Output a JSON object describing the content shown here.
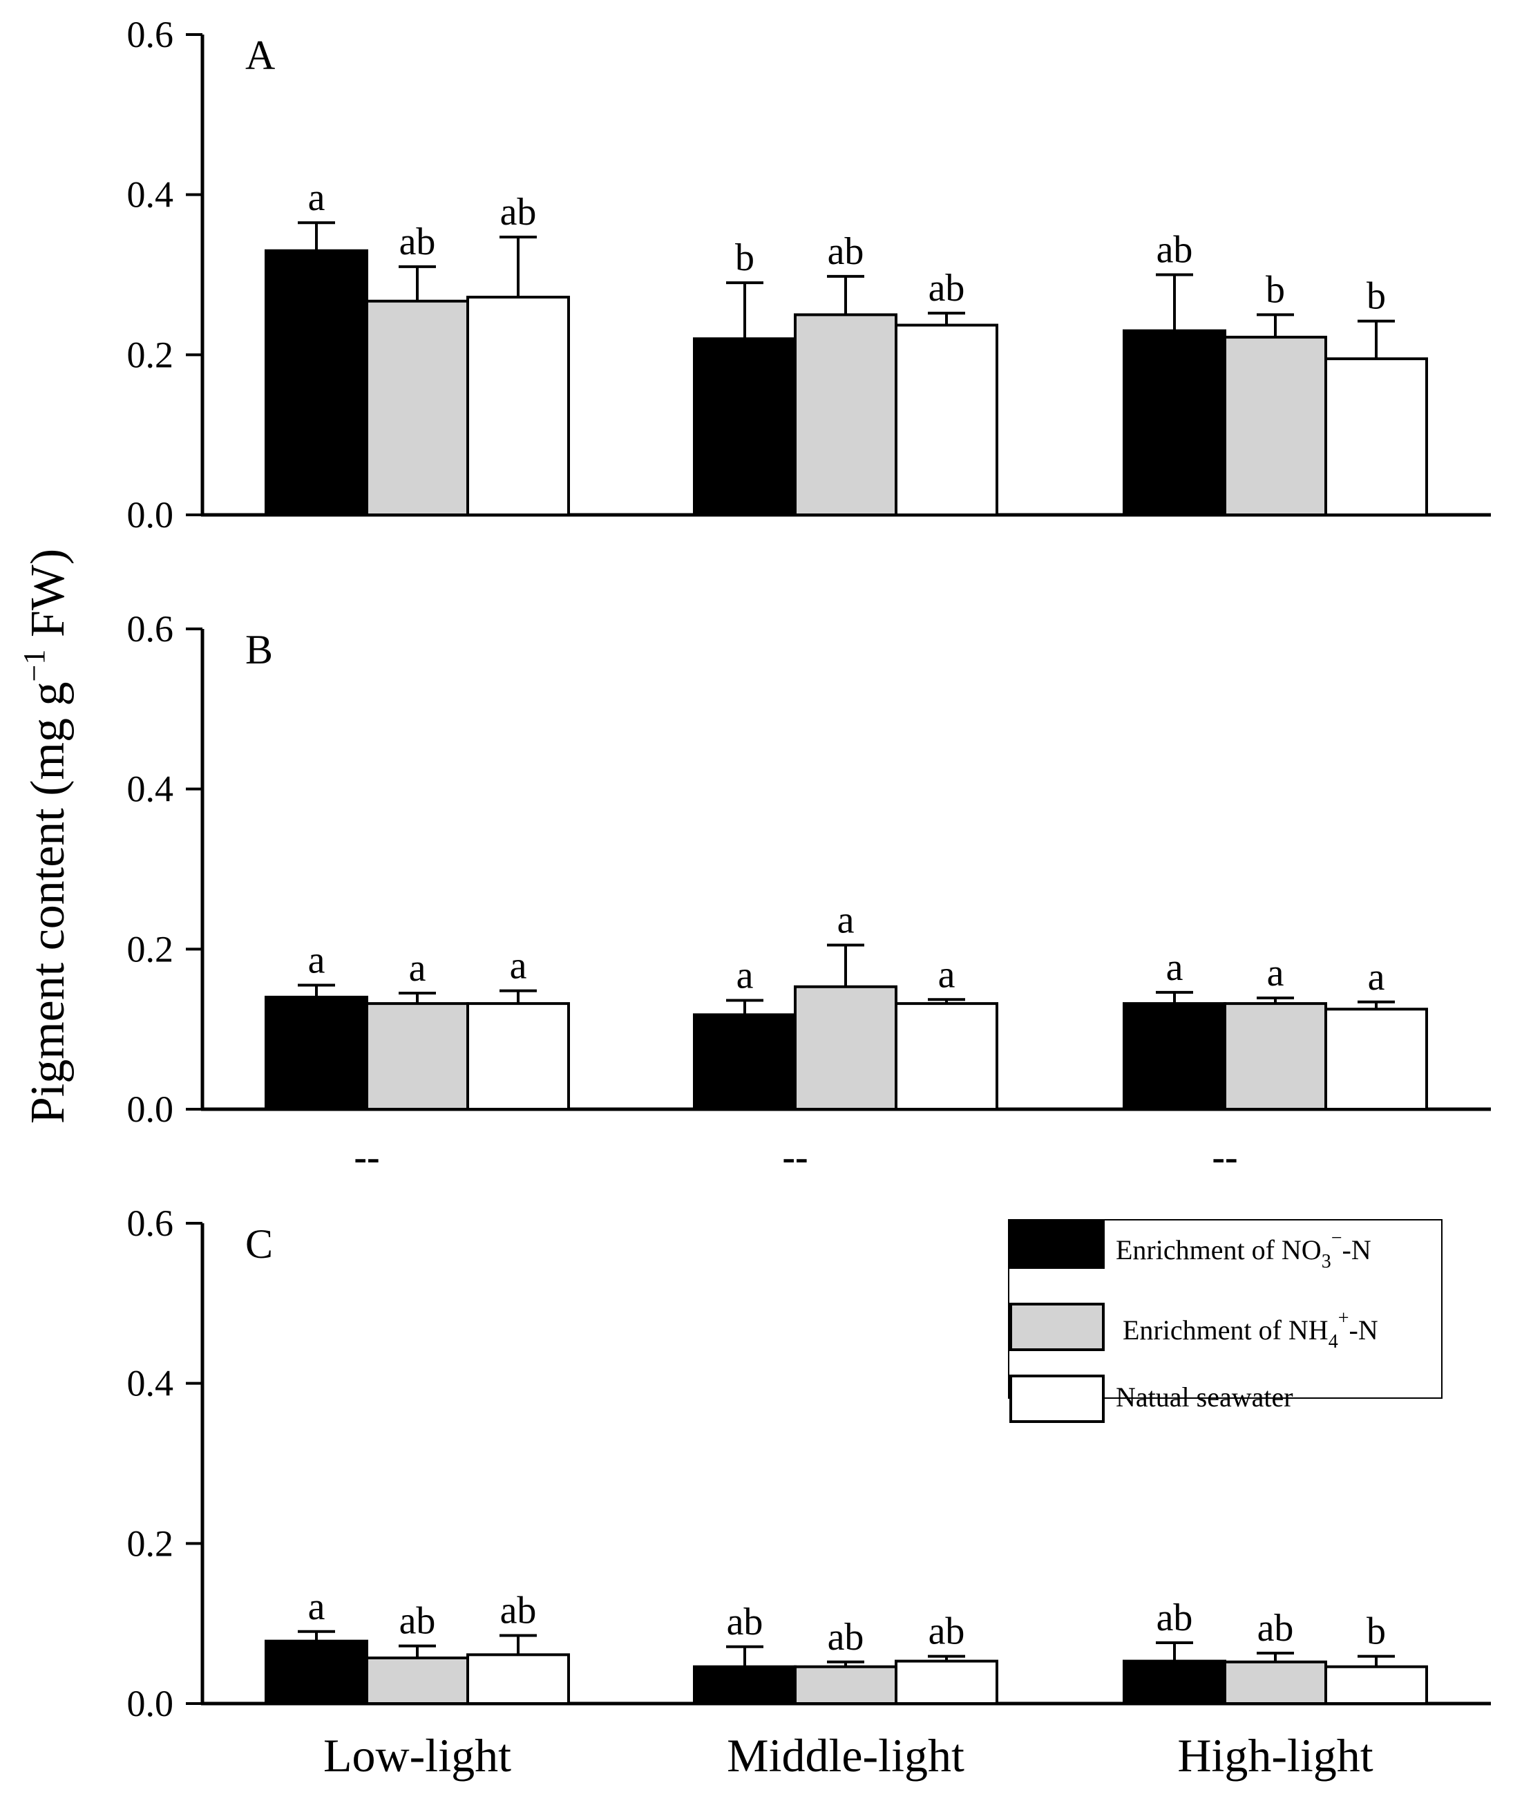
{
  "chart_data": {
    "type": "bar",
    "ylabel": "Pigment content (mg g⁻¹ FW)",
    "ylabel_parts": {
      "main": "Pigment content (mg g",
      "sup": "−1",
      "tail": " FW)"
    },
    "categories": [
      "Low-light",
      "Middle-light",
      "High-light"
    ],
    "ylim": [
      0,
      0.6
    ],
    "yticks": [
      "0.0",
      "0.2",
      "0.4",
      "0.6"
    ],
    "ytick_values": [
      0.0,
      0.2,
      0.4,
      0.6
    ],
    "legend": {
      "placement": "top-right of panel C",
      "entries": [
        {
          "name": "Enrichment of NO3−-N",
          "color": "#000000",
          "parts": {
            "pre": "Enrichment of NO",
            "sub": "3",
            "sup": "−",
            "post": "-N"
          }
        },
        {
          "name": "Enrichment of NH4+-N",
          "color": "#d3d3d3",
          "parts": {
            "pre": "Enrichment of NH",
            "sub": "4",
            "sup": "+",
            "post": "-N"
          }
        },
        {
          "name": "Natual seawater",
          "color": "#ffffff",
          "parts": {
            "pre": "Natual seawater",
            "sub": "",
            "sup": "",
            "post": ""
          }
        }
      ]
    },
    "panels": [
      {
        "label": "A",
        "series": [
          {
            "name": "Enrichment of NO3−-N",
            "color": "#000000",
            "values": [
              0.33,
              0.22,
              0.23
            ],
            "errors": [
              0.035,
              0.07,
              0.07
            ],
            "letters": [
              "a",
              "b",
              "ab"
            ]
          },
          {
            "name": "Enrichment of NH4+-N",
            "color": "#d3d3d3",
            "values": [
              0.267,
              0.25,
              0.222
            ],
            "errors": [
              0.043,
              0.048,
              0.028
            ],
            "letters": [
              "ab",
              "ab",
              "b"
            ]
          },
          {
            "name": "Natual seawater",
            "color": "#ffffff",
            "values": [
              0.272,
              0.237,
              0.195
            ],
            "errors": [
              0.075,
              0.015,
              0.047
            ],
            "letters": [
              "ab",
              "ab",
              "b"
            ]
          }
        ],
        "below_axis_marks": []
      },
      {
        "label": "B",
        "series": [
          {
            "name": "Enrichment of NO3−-N",
            "color": "#000000",
            "values": [
              0.14,
              0.118,
              0.132
            ],
            "errors": [
              0.015,
              0.018,
              0.014
            ],
            "letters": [
              "a",
              "a",
              "a"
            ]
          },
          {
            "name": "Enrichment of NH4+-N",
            "color": "#d3d3d3",
            "values": [
              0.132,
              0.153,
              0.132
            ],
            "errors": [
              0.013,
              0.052,
              0.007
            ],
            "letters": [
              "a",
              "a",
              "a"
            ]
          },
          {
            "name": "Natual seawater",
            "color": "#ffffff",
            "values": [
              0.132,
              0.132,
              0.125
            ],
            "errors": [
              0.016,
              0.005,
              0.009
            ],
            "letters": [
              "a",
              "a",
              "a"
            ]
          }
        ],
        "below_axis_marks": [
          "--",
          "--",
          "--"
        ]
      },
      {
        "label": "C",
        "series": [
          {
            "name": "Enrichment of NO3−-N",
            "color": "#000000",
            "values": [
              0.078,
              0.046,
              0.053
            ],
            "errors": [
              0.012,
              0.025,
              0.023
            ],
            "letters": [
              "a",
              "ab",
              "ab"
            ]
          },
          {
            "name": "Enrichment of NH4+-N",
            "color": "#d3d3d3",
            "values": [
              0.057,
              0.046,
              0.052
            ],
            "errors": [
              0.015,
              0.006,
              0.011
            ],
            "letters": [
              "ab",
              "ab",
              "ab"
            ]
          },
          {
            "name": "Natual seawater",
            "color": "#ffffff",
            "values": [
              0.061,
              0.053,
              0.046
            ],
            "errors": [
              0.024,
              0.006,
              0.013
            ],
            "letters": [
              "ab",
              "ab",
              "b"
            ]
          }
        ],
        "below_axis_marks": []
      }
    ]
  }
}
